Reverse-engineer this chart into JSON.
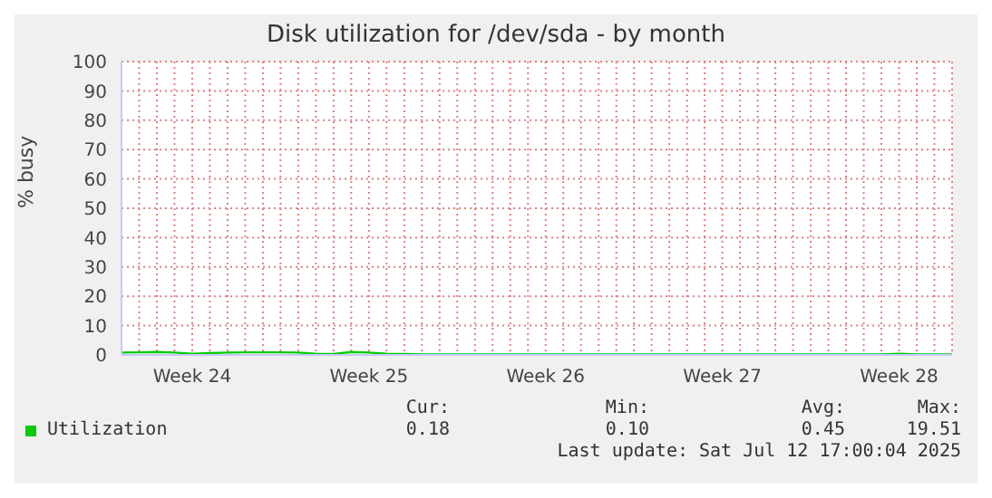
{
  "chart_data": {
    "type": "line",
    "title": "Disk utilization for /dev/sda - by month",
    "ylabel": "% busy",
    "categories": [
      null,
      null,
      null,
      null,
      "Week 24",
      null,
      null,
      null,
      null,
      null,
      null,
      null,
      null,
      null,
      "Week 25",
      null,
      null,
      null,
      null,
      null,
      null,
      null,
      null,
      null,
      "Week 26",
      null,
      null,
      null,
      null,
      null,
      null,
      null,
      null,
      null,
      "Week 27",
      null,
      null,
      null,
      null,
      null,
      null,
      null,
      null,
      null,
      "Week 28",
      null,
      null,
      null
    ],
    "ylim": [
      0,
      100
    ],
    "yticks": [
      0,
      10,
      20,
      30,
      40,
      50,
      60,
      70,
      80,
      90,
      100
    ],
    "grid": true,
    "legend": "bottom left",
    "marker": "none",
    "line_style": "solid",
    "series": [
      {
        "name": "Utilization",
        "color": "#00cc00",
        "values": [
          0.8,
          0.9,
          1.0,
          0.8,
          0.4,
          0.6,
          0.8,
          0.9,
          0.9,
          0.9,
          0.8,
          0.4,
          0.3,
          1.0,
          0.8,
          0.4,
          0.3,
          0.2,
          0.2,
          0.2,
          0.2,
          0.2,
          0.2,
          0.2,
          0.2,
          0.2,
          0.2,
          0.2,
          0.2,
          0.2,
          0.2,
          0.2,
          0.2,
          0.2,
          0.2,
          0.2,
          0.2,
          0.2,
          0.2,
          0.2,
          0.2,
          0.2,
          0.2,
          0.2,
          0.4,
          0.2,
          0.2,
          0.2
        ]
      }
    ],
    "annotations": [
      "Cur:",
      "Min:",
      "Avg:",
      "Max:",
      "0.18",
      "0.10",
      "0.45",
      "19.51",
      "Last update: Sat Jul 12 17:00:04 2025"
    ]
  }
}
